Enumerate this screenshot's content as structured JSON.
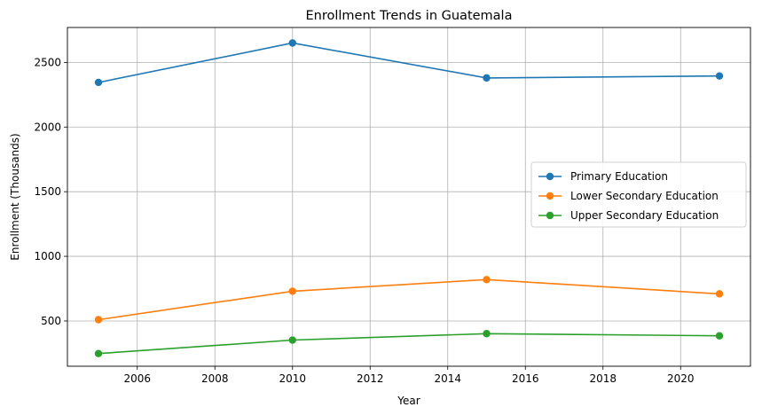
{
  "chart_data": {
    "type": "line",
    "title": "Enrollment Trends in Guatemala",
    "xlabel": "Year",
    "ylabel": "Enrollment (Thousands)",
    "x": [
      2005,
      2010,
      2015,
      2021
    ],
    "xlim": [
      2004.2,
      2021.8
    ],
    "ylim": [
      150,
      2770
    ],
    "xticks": [
      2006,
      2008,
      2010,
      2012,
      2014,
      2016,
      2018,
      2020
    ],
    "yticks": [
      500,
      1000,
      1500,
      2000,
      2500
    ],
    "grid": true,
    "legend_position": "center-right",
    "series": [
      {
        "name": "Primary Education",
        "color": "#1f77b4",
        "values": [
          2345,
          2650,
          2380,
          2395
        ]
      },
      {
        "name": "Lower Secondary Education",
        "color": "#ff7f0e",
        "values": [
          510,
          730,
          820,
          710
        ]
      },
      {
        "name": "Upper Secondary Education",
        "color": "#2ca02c",
        "values": [
          248,
          352,
          402,
          385
        ]
      }
    ]
  }
}
